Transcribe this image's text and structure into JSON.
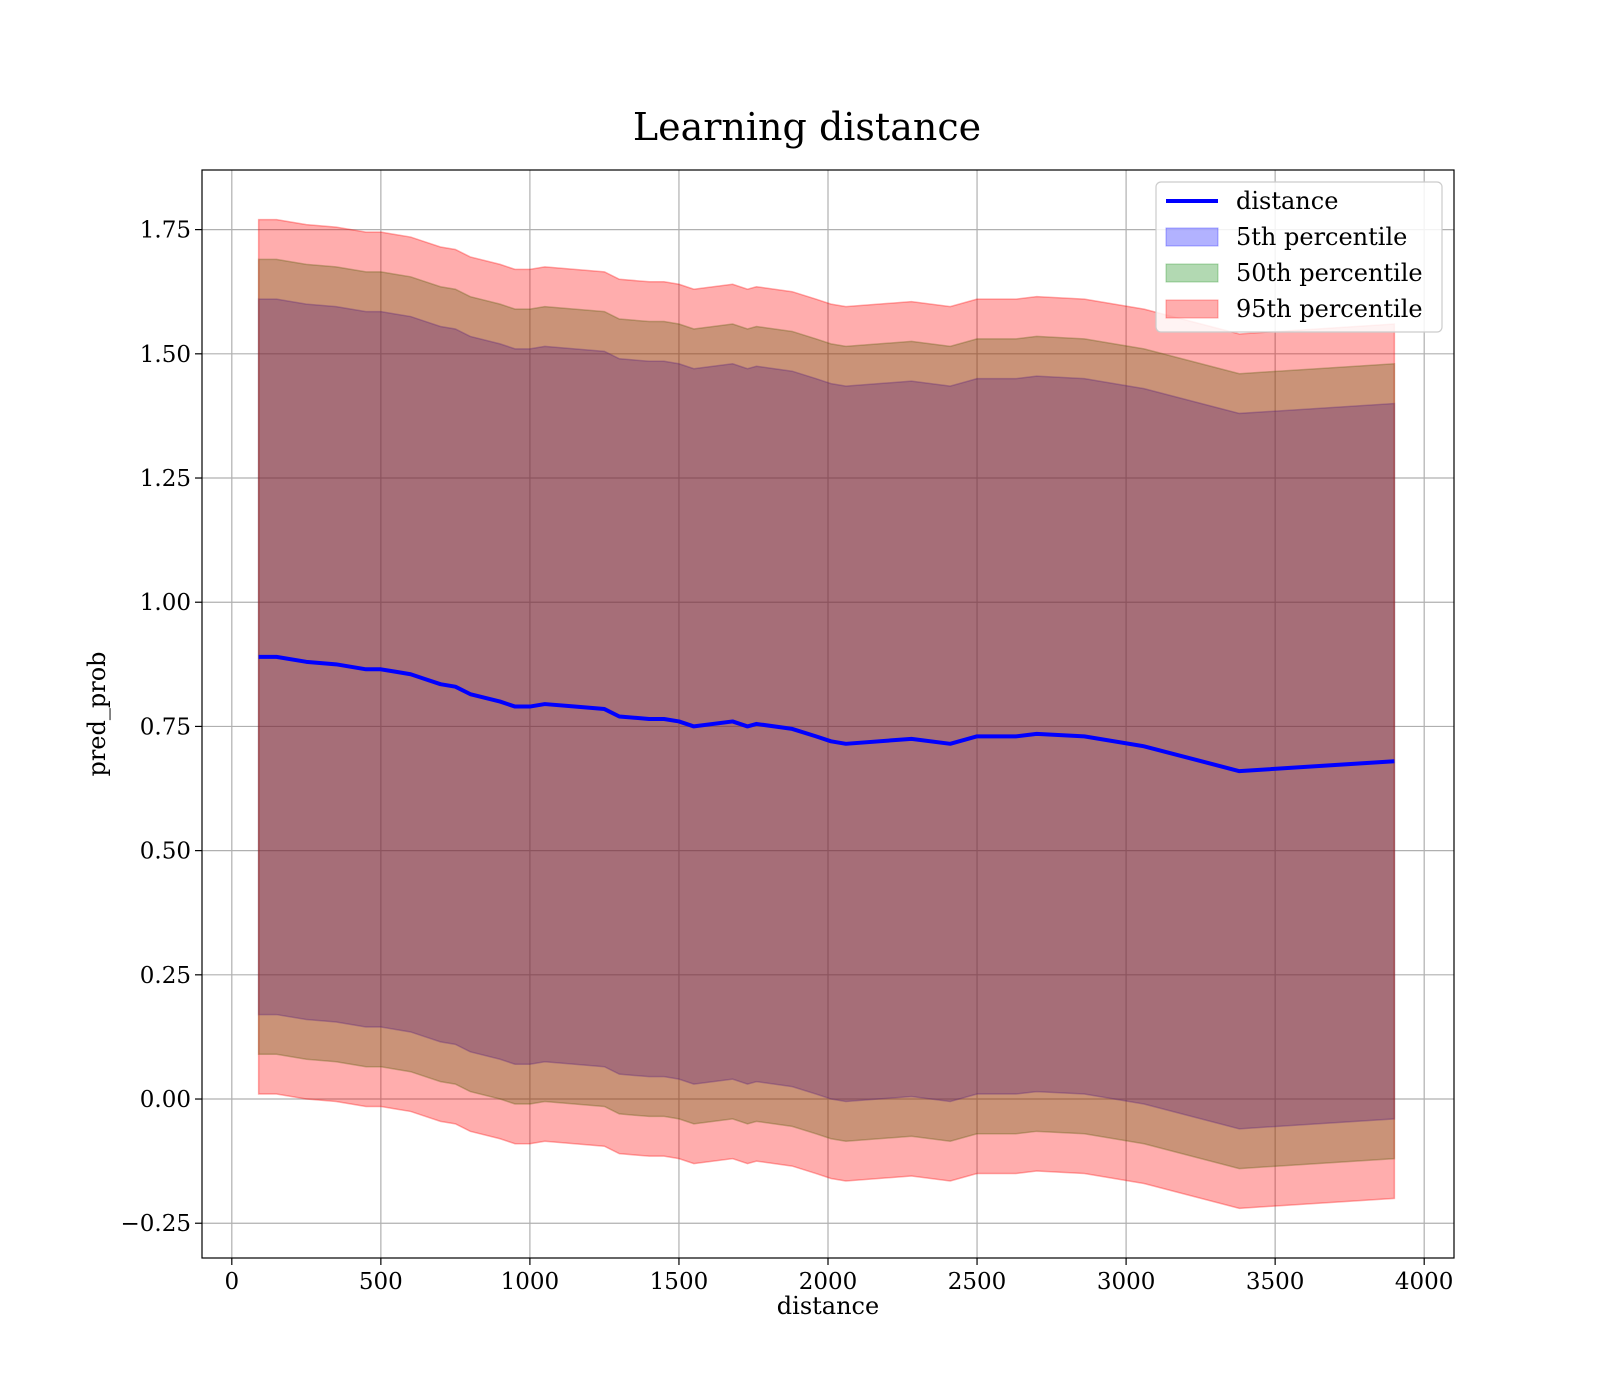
{
  "chart_data": {
    "type": "area",
    "title": "Learning distance",
    "xlabel": "distance",
    "ylabel": "pred_prob",
    "xlim": [
      -100,
      4100
    ],
    "ylim": [
      -0.32,
      1.87
    ],
    "xticks": [
      0,
      500,
      1000,
      1500,
      2000,
      2500,
      3000,
      3500,
      4000
    ],
    "xtick_labels": [
      "0",
      "500",
      "1000",
      "1500",
      "2000",
      "2500",
      "3000",
      "3500",
      "4000"
    ],
    "yticks": [
      -0.25,
      0.0,
      0.25,
      0.5,
      0.75,
      1.0,
      1.25,
      1.5,
      1.75
    ],
    "ytick_labels": [
      "−0.25",
      "0.00",
      "0.25",
      "0.50",
      "0.75",
      "1.00",
      "1.25",
      "1.50",
      "1.75"
    ],
    "grid": true,
    "legend_position": "top-right",
    "x": [
      90,
      150,
      250,
      350,
      450,
      500,
      550,
      600,
      650,
      700,
      750,
      800,
      900,
      950,
      1000,
      1050,
      1150,
      1250,
      1300,
      1400,
      1450,
      1500,
      1550,
      1680,
      1730,
      1760,
      1880,
      1960,
      2010,
      2060,
      2280,
      2410,
      2500,
      2630,
      2700,
      2860,
      3060,
      3380,
      3900
    ],
    "series": [
      {
        "name": "distance",
        "kind": "line",
        "color": "#0000ff",
        "values": [
          0.89,
          0.89,
          0.88,
          0.875,
          0.865,
          0.865,
          0.86,
          0.855,
          0.845,
          0.835,
          0.83,
          0.815,
          0.8,
          0.79,
          0.79,
          0.795,
          0.79,
          0.785,
          0.77,
          0.765,
          0.765,
          0.76,
          0.75,
          0.76,
          0.75,
          0.755,
          0.745,
          0.73,
          0.72,
          0.715,
          0.725,
          0.715,
          0.73,
          0.73,
          0.735,
          0.73,
          0.71,
          0.66,
          0.68
        ]
      },
      {
        "name": "5th percentile",
        "kind": "band",
        "color": "#0000ff",
        "opacity": 0.3,
        "half_width": 0.72
      },
      {
        "name": "50th percentile",
        "kind": "band",
        "color": "#008000",
        "opacity": 0.3,
        "half_width": 0.8
      },
      {
        "name": "95th percentile",
        "kind": "band",
        "color": "#ff0000",
        "opacity": 0.32,
        "half_width": 0.88
      }
    ]
  }
}
